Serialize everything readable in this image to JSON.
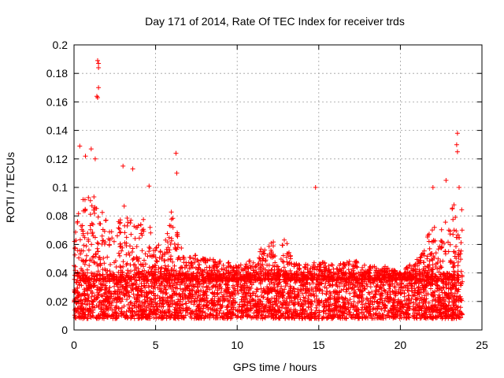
{
  "chart_data": {
    "type": "scatter",
    "title": "Day 171 of 2014, Rate Of TEC Index for receiver trds",
    "xlabel": "GPS time / hours",
    "ylabel": "ROTI / TECUs",
    "xlim": [
      0,
      25
    ],
    "ylim": [
      0,
      0.2
    ],
    "xticks": [
      0,
      5,
      10,
      15,
      20,
      25
    ],
    "yticks": [
      0,
      0.02,
      0.04,
      0.06,
      0.08,
      0.1,
      0.12,
      0.14,
      0.16,
      0.18,
      0.2
    ],
    "grid": true,
    "marker": "+",
    "series": [
      {
        "name": "ROTI",
        "color": "#ff0000",
        "envelope_x": [
          0,
          0.3,
          0.7,
          1.1,
          1.5,
          2.0,
          2.5,
          3.0,
          3.5,
          4.0,
          4.5,
          5.0,
          5.5,
          6.0,
          6.5,
          7.0,
          7.5,
          8.0,
          9.0,
          10.0,
          11.0,
          12.0,
          12.5,
          13.0,
          13.5,
          14.0,
          15.0,
          16.0,
          17.0,
          18.0,
          19.0,
          20.0,
          21.0,
          22.0,
          22.5,
          23.0,
          23.5,
          23.8
        ],
        "envelope_y": [
          0.06,
          0.09,
          0.095,
          0.1,
          0.09,
          0.08,
          0.07,
          0.09,
          0.08,
          0.075,
          0.08,
          0.06,
          0.06,
          0.085,
          0.06,
          0.05,
          0.055,
          0.05,
          0.05,
          0.045,
          0.05,
          0.065,
          0.06,
          0.065,
          0.05,
          0.045,
          0.05,
          0.045,
          0.05,
          0.045,
          0.045,
          0.04,
          0.05,
          0.075,
          0.07,
          0.085,
          0.09,
          0.085
        ],
        "base_range": [
          0.008,
          0.04
        ],
        "outliers": [
          {
            "x": 1.45,
            "y": 0.189
          },
          {
            "x": 1.5,
            "y": 0.187
          },
          {
            "x": 1.5,
            "y": 0.184
          },
          {
            "x": 1.5,
            "y": 0.17
          },
          {
            "x": 1.4,
            "y": 0.164
          },
          {
            "x": 1.45,
            "y": 0.163
          },
          {
            "x": 0.35,
            "y": 0.129
          },
          {
            "x": 0.7,
            "y": 0.122
          },
          {
            "x": 1.05,
            "y": 0.127
          },
          {
            "x": 1.3,
            "y": 0.12
          },
          {
            "x": 3.0,
            "y": 0.115
          },
          {
            "x": 3.6,
            "y": 0.113
          },
          {
            "x": 4.6,
            "y": 0.101
          },
          {
            "x": 6.25,
            "y": 0.124
          },
          {
            "x": 6.3,
            "y": 0.11
          },
          {
            "x": 14.8,
            "y": 0.1
          },
          {
            "x": 22.0,
            "y": 0.1
          },
          {
            "x": 22.8,
            "y": 0.105
          },
          {
            "x": 23.5,
            "y": 0.138
          },
          {
            "x": 23.45,
            "y": 0.13
          },
          {
            "x": 23.5,
            "y": 0.125
          },
          {
            "x": 23.6,
            "y": 0.1
          }
        ]
      }
    ]
  }
}
